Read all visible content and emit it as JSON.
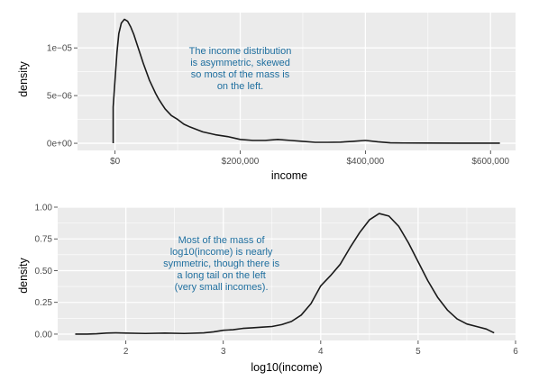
{
  "colors": {
    "panel_bg": "#ebebeb",
    "gridline": "#ffffff",
    "curve": "#1a1a1a",
    "tick_text": "#4d4d4d",
    "annotation_text": "#1f6f9f"
  },
  "chart_data": [
    {
      "type": "line",
      "xlabel": "income",
      "ylabel": "density",
      "xlim": [
        -60000,
        640000
      ],
      "ylim": [
        -7.5e-07,
        1.37e-05
      ],
      "x_ticks": [
        0,
        200000,
        400000,
        600000
      ],
      "x_tick_labels": [
        "$0",
        "$200,000",
        "$400,000",
        "$600,000"
      ],
      "y_ticks": [
        0,
        5e-06,
        1e-05
      ],
      "y_tick_labels": [
        "0e+00",
        "5e−06",
        "1e−05"
      ],
      "grid": true,
      "annotation": {
        "lines": [
          "The income distribution",
          "is asymmetric, skewed",
          "so most of the mass is",
          "on the left."
        ],
        "x": 200000,
        "y": 7.9e-06
      },
      "series": [
        {
          "x": [
            -3000,
            -3000,
            0,
            3000,
            6000,
            10000,
            15000,
            20000,
            25000,
            30000,
            35000,
            40000,
            45000,
            50000,
            55000,
            60000,
            65000,
            70000,
            75000,
            80000,
            90000,
            100000,
            110000,
            120000,
            140000,
            160000,
            180000,
            200000,
            220000,
            240000,
            260000,
            280000,
            300000,
            320000,
            340000,
            360000,
            380000,
            400000,
            420000,
            440000,
            460000,
            500000,
            550000,
            600000,
            615000
          ],
          "y": [
            0,
            3.8e-06,
            6.7e-06,
            9.5e-06,
            1.15e-05,
            1.26e-05,
            1.3e-05,
            1.28e-05,
            1.22e-05,
            1.14e-05,
            1.04e-05,
            9.4e-06,
            8.4e-06,
            7.5e-06,
            6.6e-06,
            5.9e-06,
            5.2e-06,
            4.6e-06,
            4.1e-06,
            3.6e-06,
            2.9e-06,
            2.5e-06,
            2e-06,
            1.7e-06,
            1.2e-06,
            9e-07,
            7e-07,
            4e-07,
            3e-07,
            3e-07,
            4e-07,
            3e-07,
            2e-07,
            1e-07,
            1e-07,
            1.2e-07,
            2e-07,
            3e-07,
            1.5e-07,
            5e-08,
            3e-08,
            2e-08,
            1e-08,
            1e-08,
            1e-08
          ]
        }
      ]
    },
    {
      "type": "line",
      "xlabel": "log10(income)",
      "ylabel": "density",
      "xlim": [
        1.3,
        6.0
      ],
      "ylim": [
        -0.05,
        1.0
      ],
      "x_ticks": [
        2,
        3,
        4,
        5,
        6
      ],
      "x_tick_labels": [
        "2",
        "3",
        "4",
        "5",
        "6"
      ],
      "y_ticks": [
        0,
        0.25,
        0.5,
        0.75,
        1.0
      ],
      "y_tick_labels": [
        "0.00",
        "0.25",
        "0.50",
        "0.75",
        "1.00"
      ],
      "grid": true,
      "annotation": {
        "lines": [
          "Most of the mass of",
          "log10(income) is nearly",
          "symmetric, though there is",
          "a long tail on the left",
          "(very small incomes)."
        ],
        "x": 2.98,
        "y": 0.56
      },
      "series": [
        {
          "x": [
            1.48,
            1.6,
            1.7,
            1.8,
            1.9,
            2.0,
            2.2,
            2.4,
            2.6,
            2.8,
            2.9,
            3.0,
            3.1,
            3.2,
            3.3,
            3.4,
            3.5,
            3.6,
            3.7,
            3.8,
            3.9,
            4.0,
            4.1,
            4.2,
            4.3,
            4.4,
            4.5,
            4.6,
            4.7,
            4.8,
            4.9,
            5.0,
            5.1,
            5.2,
            5.3,
            5.4,
            5.5,
            5.6,
            5.7,
            5.78
          ],
          "y": [
            0.0,
            0.0,
            0.003,
            0.008,
            0.01,
            0.008,
            0.005,
            0.008,
            0.005,
            0.01,
            0.018,
            0.03,
            0.035,
            0.045,
            0.05,
            0.055,
            0.06,
            0.075,
            0.1,
            0.15,
            0.24,
            0.38,
            0.46,
            0.55,
            0.68,
            0.8,
            0.9,
            0.95,
            0.93,
            0.85,
            0.72,
            0.57,
            0.42,
            0.29,
            0.19,
            0.12,
            0.08,
            0.06,
            0.04,
            0.01
          ]
        }
      ]
    }
  ]
}
